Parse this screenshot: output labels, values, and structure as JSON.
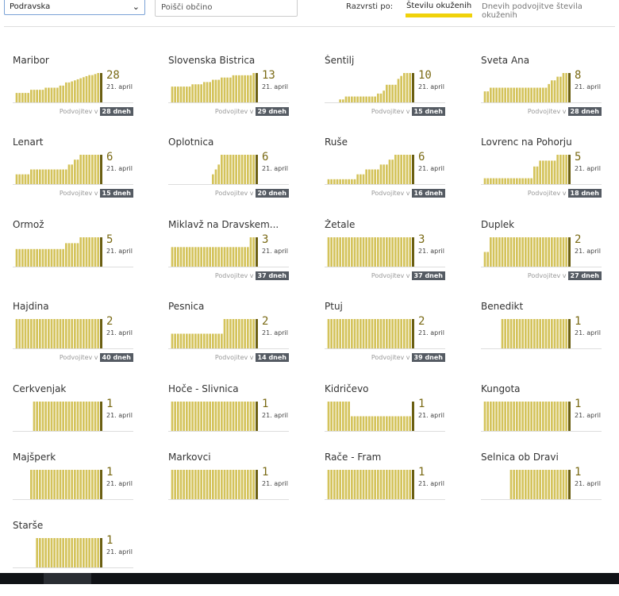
{
  "filters": {
    "region_selected": "Podravska",
    "search_placeholder": "Poišči občino",
    "sort_label": "Razvrsti po:",
    "sort_option_1": "Številu okuženih",
    "sort_option_2": "Dnevih podvojitve števila okuženih"
  },
  "colors": {
    "bar": "#d4c35b",
    "today_bar": "#6b5f12",
    "badge": "#555b63",
    "accent": "#f0d20a"
  },
  "chart_data": [
    {
      "type": "bar",
      "title": "Maribor",
      "value": "28",
      "date": "21. april",
      "doubling_label": "Podvojitev v",
      "doubling": "28 dneh",
      "max": 28,
      "values": [
        0,
        9,
        9,
        9,
        9,
        9,
        12,
        12,
        12,
        12,
        12,
        14,
        14,
        14,
        14,
        14,
        16,
        16,
        19,
        19,
        20,
        21,
        22,
        23,
        24,
        25,
        26,
        26,
        27,
        28
      ]
    },
    {
      "type": "bar",
      "title": "Slovenska Bistrica",
      "value": "13",
      "date": "21. april",
      "doubling_label": "Podvojitev v",
      "doubling": "29 dneh",
      "max": 13,
      "values": [
        0,
        7,
        7,
        7,
        7,
        7,
        7,
        7,
        8,
        8,
        8,
        8,
        9,
        9,
        9,
        10,
        10,
        10,
        11,
        11,
        11,
        11,
        12,
        12,
        12,
        12,
        12,
        12,
        12,
        13
      ]
    },
    {
      "type": "bar",
      "title": "Šentilj",
      "value": "10",
      "date": "21. april",
      "doubling_label": "Podvojitev v",
      "doubling": "15 dneh",
      "max": 10,
      "values": [
        0,
        0,
        0,
        0,
        0,
        1,
        1,
        2,
        2,
        2,
        2,
        2,
        2,
        2,
        2,
        2,
        2,
        2,
        3,
        3,
        4,
        6,
        6,
        6,
        6,
        8,
        9,
        10,
        10,
        10
      ]
    },
    {
      "type": "bar",
      "title": "Sveta Ana",
      "value": "8",
      "date": "21. april",
      "doubling_label": "Podvojitev v",
      "doubling": "28 dneh",
      "max": 8,
      "values": [
        0,
        3,
        3,
        4,
        4,
        4,
        4,
        4,
        4,
        4,
        4,
        4,
        4,
        4,
        4,
        4,
        4,
        4,
        4,
        4,
        4,
        4,
        4,
        5,
        6,
        6,
        7,
        7,
        8,
        8
      ]
    },
    {
      "type": "bar",
      "title": "Lenart",
      "value": "6",
      "date": "21. april",
      "doubling_label": "Podvojitev v",
      "doubling": "15 dneh",
      "max": 6,
      "values": [
        0,
        2,
        2,
        2,
        2,
        2,
        3,
        3,
        3,
        3,
        3,
        3,
        3,
        3,
        3,
        3,
        3,
        3,
        3,
        4,
        4,
        5,
        5,
        6,
        6,
        6,
        6,
        6,
        6,
        6
      ]
    },
    {
      "type": "bar",
      "title": "Oplotnica",
      "value": "6",
      "date": "21. april",
      "doubling_label": "Podvojitev v",
      "doubling": "20 dneh",
      "max": 6,
      "values": [
        0,
        0,
        0,
        0,
        0,
        0,
        0,
        0,
        0,
        0,
        0,
        0,
        0,
        0,
        0,
        2,
        3,
        4,
        6,
        6,
        6,
        6,
        6,
        6,
        6,
        6,
        6,
        6,
        6,
        6
      ]
    },
    {
      "type": "bar",
      "title": "Ruše",
      "value": "6",
      "date": "21. april",
      "doubling_label": "Podvojitev v",
      "doubling": "16 dneh",
      "max": 6,
      "values": [
        0,
        1,
        1,
        1,
        1,
        1,
        1,
        1,
        1,
        1,
        1,
        2,
        2,
        2,
        3,
        3,
        3,
        3,
        3,
        4,
        4,
        4,
        5,
        5,
        6,
        6,
        6,
        6,
        6,
        6
      ]
    },
    {
      "type": "bar",
      "title": "Lovrenc na Pohorju",
      "value": "5",
      "date": "21. april",
      "doubling_label": "Podvojitev v",
      "doubling": "18 dneh",
      "max": 5,
      "values": [
        0,
        1,
        1,
        1,
        1,
        1,
        1,
        1,
        1,
        1,
        1,
        1,
        1,
        1,
        1,
        1,
        1,
        1,
        3,
        3,
        4,
        4,
        4,
        4,
        4,
        4,
        5,
        5,
        5,
        5
      ]
    },
    {
      "type": "bar",
      "title": "Ormož",
      "value": "5",
      "date": "21. april",
      "doubling_label": "",
      "doubling": "",
      "max": 5,
      "values": [
        0,
        3,
        3,
        3,
        3,
        3,
        3,
        3,
        3,
        3,
        3,
        3,
        3,
        3,
        3,
        3,
        3,
        3,
        4,
        4,
        4,
        4,
        4,
        5,
        5,
        5,
        5,
        5,
        5,
        5
      ]
    },
    {
      "type": "bar",
      "title": "Miklavž na Dravskem...",
      "value": "3",
      "date": "21. april",
      "doubling_label": "Podvojitev v",
      "doubling": "37 dneh",
      "max": 3,
      "values": [
        0,
        2,
        2,
        2,
        2,
        2,
        2,
        2,
        2,
        2,
        2,
        2,
        2,
        2,
        2,
        2,
        2,
        2,
        2,
        2,
        2,
        2,
        2,
        2,
        2,
        2,
        2,
        2,
        3,
        3
      ]
    },
    {
      "type": "bar",
      "title": "Žetale",
      "value": "3",
      "date": "21. april",
      "doubling_label": "Podvojitev v",
      "doubling": "37 dneh",
      "max": 3,
      "values": [
        0,
        3,
        3,
        3,
        3,
        3,
        3,
        3,
        3,
        3,
        3,
        3,
        3,
        3,
        3,
        3,
        3,
        3,
        3,
        3,
        3,
        3,
        3,
        3,
        3,
        3,
        3,
        3,
        3,
        3
      ]
    },
    {
      "type": "bar",
      "title": "Duplek",
      "value": "2",
      "date": "21. april",
      "doubling_label": "Podvojitev v",
      "doubling": "27 dneh",
      "max": 2,
      "values": [
        0,
        1,
        1,
        2,
        2,
        2,
        2,
        2,
        2,
        2,
        2,
        2,
        2,
        2,
        2,
        2,
        2,
        2,
        2,
        2,
        2,
        2,
        2,
        2,
        2,
        2,
        2,
        2,
        2,
        2
      ]
    },
    {
      "type": "bar",
      "title": "Hajdina",
      "value": "2",
      "date": "21. april",
      "doubling_label": "Podvojitev v",
      "doubling": "40 dneh",
      "max": 2,
      "values": [
        0,
        2,
        2,
        2,
        2,
        2,
        2,
        2,
        2,
        2,
        2,
        2,
        2,
        2,
        2,
        2,
        2,
        2,
        2,
        2,
        2,
        2,
        2,
        2,
        2,
        2,
        2,
        2,
        2,
        2
      ]
    },
    {
      "type": "bar",
      "title": "Pesnica",
      "value": "2",
      "date": "21. april",
      "doubling_label": "Podvojitev v",
      "doubling": "14 dneh",
      "max": 2,
      "values": [
        0,
        1,
        1,
        1,
        1,
        1,
        1,
        1,
        1,
        1,
        1,
        1,
        1,
        1,
        1,
        1,
        1,
        1,
        1,
        2,
        2,
        2,
        2,
        2,
        2,
        2,
        2,
        2,
        2,
        2
      ]
    },
    {
      "type": "bar",
      "title": "Ptuj",
      "value": "2",
      "date": "21. april",
      "doubling_label": "Podvojitev v",
      "doubling": "39 dneh",
      "max": 2,
      "values": [
        0,
        2,
        2,
        2,
        2,
        2,
        2,
        2,
        2,
        2,
        2,
        2,
        2,
        2,
        2,
        2,
        2,
        2,
        2,
        2,
        2,
        2,
        2,
        2,
        2,
        2,
        2,
        2,
        2,
        2
      ]
    },
    {
      "type": "bar",
      "title": "Benedikt",
      "value": "1",
      "date": "21. april",
      "doubling_label": "",
      "doubling": "",
      "max": 1,
      "values": [
        0,
        0,
        0,
        0,
        0,
        0,
        0,
        1,
        1,
        1,
        1,
        1,
        1,
        1,
        1,
        1,
        1,
        1,
        1,
        1,
        1,
        1,
        1,
        1,
        1,
        1,
        1,
        1,
        1,
        1
      ]
    },
    {
      "type": "bar",
      "title": "Cerkvenjak",
      "value": "1",
      "date": "21. april",
      "doubling_label": "",
      "doubling": "",
      "max": 1,
      "values": [
        0,
        0,
        0,
        0,
        0,
        0,
        0,
        1,
        1,
        1,
        1,
        1,
        1,
        1,
        1,
        1,
        1,
        1,
        1,
        1,
        1,
        1,
        1,
        1,
        1,
        1,
        1,
        1,
        1,
        1
      ]
    },
    {
      "type": "bar",
      "title": "Hoče - Slivnica",
      "value": "1",
      "date": "21. april",
      "doubling_label": "",
      "doubling": "",
      "max": 1,
      "values": [
        0,
        1,
        1,
        1,
        1,
        1,
        1,
        1,
        1,
        1,
        1,
        1,
        1,
        1,
        1,
        1,
        1,
        1,
        1,
        1,
        1,
        1,
        1,
        1,
        1,
        1,
        1,
        1,
        1,
        1
      ]
    },
    {
      "type": "bar",
      "title": "Kidričevo",
      "value": "1",
      "date": "21. april",
      "doubling_label": "",
      "doubling": "",
      "max": 2,
      "values": [
        0,
        2,
        2,
        2,
        2,
        2,
        2,
        2,
        2,
        1,
        1,
        1,
        1,
        1,
        1,
        1,
        1,
        1,
        1,
        1,
        1,
        1,
        1,
        1,
        1,
        1,
        1,
        1,
        1,
        1
      ]
    },
    {
      "type": "bar",
      "title": "Kungota",
      "value": "1",
      "date": "21. april",
      "doubling_label": "",
      "doubling": "",
      "max": 1,
      "values": [
        0,
        1,
        1,
        1,
        1,
        1,
        1,
        1,
        1,
        1,
        1,
        1,
        1,
        1,
        1,
        1,
        1,
        1,
        1,
        1,
        1,
        1,
        1,
        1,
        1,
        1,
        1,
        1,
        1,
        1
      ]
    },
    {
      "type": "bar",
      "title": "Majšperk",
      "value": "1",
      "date": "21. april",
      "doubling_label": "",
      "doubling": "",
      "max": 1,
      "values": [
        0,
        0,
        0,
        0,
        0,
        0,
        1,
        1,
        1,
        1,
        1,
        1,
        1,
        1,
        1,
        1,
        1,
        1,
        1,
        1,
        1,
        1,
        1,
        1,
        1,
        1,
        1,
        1,
        1,
        1
      ]
    },
    {
      "type": "bar",
      "title": "Markovci",
      "value": "1",
      "date": "21. april",
      "doubling_label": "",
      "doubling": "",
      "max": 1,
      "values": [
        0,
        1,
        1,
        1,
        1,
        1,
        1,
        1,
        1,
        1,
        1,
        1,
        1,
        1,
        1,
        1,
        1,
        1,
        1,
        1,
        1,
        1,
        1,
        1,
        1,
        1,
        1,
        1,
        1,
        1
      ]
    },
    {
      "type": "bar",
      "title": "Rače - Fram",
      "value": "1",
      "date": "21. april",
      "doubling_label": "",
      "doubling": "",
      "max": 1,
      "values": [
        0,
        1,
        1,
        1,
        1,
        1,
        1,
        1,
        1,
        1,
        1,
        1,
        1,
        1,
        1,
        1,
        1,
        1,
        1,
        1,
        1,
        1,
        1,
        1,
        1,
        1,
        1,
        1,
        1,
        1
      ]
    },
    {
      "type": "bar",
      "title": "Selnica ob Dravi",
      "value": "1",
      "date": "21. april",
      "doubling_label": "",
      "doubling": "",
      "max": 1,
      "values": [
        0,
        0,
        0,
        0,
        0,
        0,
        0,
        0,
        0,
        0,
        1,
        1,
        1,
        1,
        1,
        1,
        1,
        1,
        1,
        1,
        1,
        1,
        1,
        1,
        1,
        1,
        1,
        1,
        1,
        1
      ]
    },
    {
      "type": "bar",
      "title": "Starše",
      "value": "1",
      "date": "21. april",
      "doubling_label": "",
      "doubling": "",
      "max": 1,
      "values": [
        0,
        0,
        0,
        0,
        0,
        0,
        0,
        0,
        1,
        1,
        1,
        1,
        1,
        1,
        1,
        1,
        1,
        1,
        1,
        1,
        1,
        1,
        1,
        1,
        1,
        1,
        1,
        1,
        1,
        1
      ]
    }
  ]
}
